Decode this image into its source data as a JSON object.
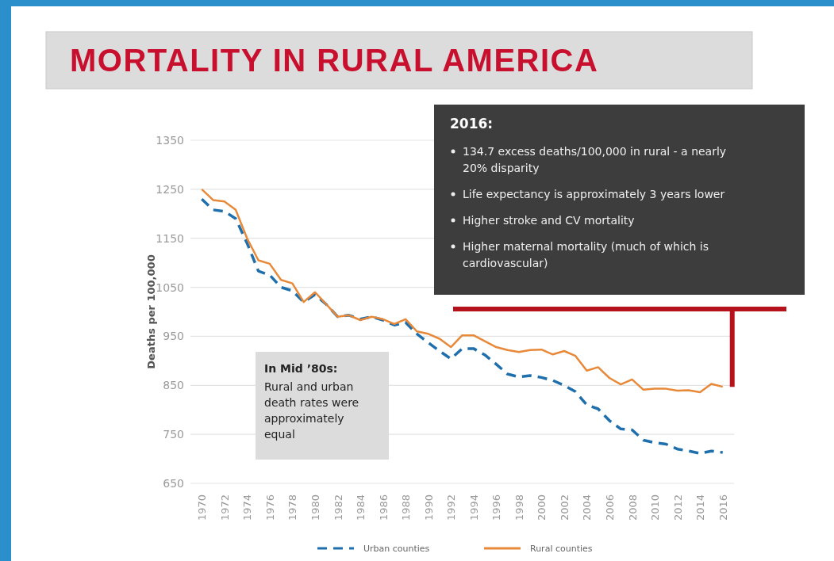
{
  "chart_data": {
    "type": "line",
    "title": "MORTALITY IN RURAL AMERICA",
    "ylabel": "Deaths per 100,000",
    "x": [
      1970,
      1971,
      1972,
      1973,
      1974,
      1975,
      1976,
      1977,
      1978,
      1979,
      1980,
      1981,
      1982,
      1983,
      1984,
      1985,
      1986,
      1987,
      1988,
      1989,
      1990,
      1991,
      1992,
      1993,
      1994,
      1995,
      1996,
      1997,
      1998,
      1999,
      2000,
      2001,
      2002,
      2003,
      2004,
      2005,
      2006,
      2007,
      2008,
      2009,
      2010,
      2011,
      2012,
      2013,
      2014,
      2015,
      2016
    ],
    "series": [
      {
        "name": "Urban counties",
        "color": "#1f6fad",
        "line_style": "dashed",
        "values": [
          1230,
          1208,
          1205,
          1190,
          1140,
          1083,
          1075,
          1050,
          1043,
          1020,
          1035,
          1015,
          990,
          993,
          985,
          990,
          983,
          973,
          978,
          955,
          937,
          920,
          904,
          925,
          925,
          912,
          893,
          873,
          867,
          870,
          866,
          860,
          850,
          837,
          810,
          802,
          778,
          761,
          759,
          738,
          733,
          730,
          720,
          716,
          711,
          716,
          713
        ]
      },
      {
        "name": "Rural counties",
        "color": "#e8893a",
        "line_style": "solid",
        "values": [
          1250,
          1228,
          1225,
          1208,
          1150,
          1105,
          1098,
          1065,
          1058,
          1020,
          1040,
          1015,
          990,
          993,
          983,
          990,
          985,
          975,
          985,
          960,
          955,
          945,
          928,
          952,
          952,
          940,
          928,
          922,
          918,
          922,
          923,
          913,
          920,
          910,
          880,
          887,
          865,
          852,
          862,
          841,
          843,
          843,
          839,
          840,
          836,
          853,
          847
        ]
      }
    ],
    "xlim": [
      1969,
      2017
    ],
    "xticks": [
      1970,
      1972,
      1974,
      1976,
      1978,
      1980,
      1982,
      1984,
      1986,
      1988,
      1990,
      1992,
      1994,
      1996,
      1998,
      2000,
      2002,
      2004,
      2006,
      2008,
      2010,
      2012,
      2014,
      2016
    ],
    "ylim": [
      650,
      1350
    ],
    "yticks": [
      650,
      750,
      850,
      950,
      1050,
      1150,
      1250,
      1350
    ],
    "grid": "y",
    "legend": "bottom",
    "annotations": [
      "2016:",
      "134.7 excess deaths/100,000 in rural - a nearly 20% disparity",
      "Life expectancy is approximately 3 years lower",
      "Higher stroke and CV mortality",
      "Higher maternal mortality (much of which is cardiovascular)",
      "In Mid ’80s:",
      "Rural and urban death rates were approximately equal"
    ]
  }
}
